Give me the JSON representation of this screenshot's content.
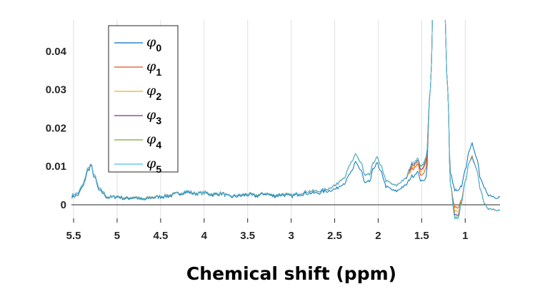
{
  "chart_data": {
    "type": "line",
    "title": "",
    "xlabel": "Chemical shift (ppm)",
    "ylabel": "",
    "xlim": [
      5.525,
      0.6
    ],
    "x_reversed": true,
    "ylim": [
      -0.0047,
      0.0482
    ],
    "grid": "vertical",
    "legend_position": "top-left",
    "x_ticks": [
      "5.5",
      "5",
      "4.5",
      "4",
      "3.5",
      "3",
      "2.5",
      "2",
      "1.5",
      "1"
    ],
    "x_tick_values": [
      5.5,
      5,
      4.5,
      4,
      3.5,
      3,
      2.5,
      2,
      1.5,
      1
    ],
    "y_ticks": [
      "0",
      "0.01",
      "0.02",
      "0.03",
      "0.04"
    ],
    "y_tick_values": [
      0,
      0.01,
      0.02,
      0.03,
      0.04
    ],
    "x": [
      5.52,
      5.45,
      5.4,
      5.33,
      5.3,
      5.27,
      5.2,
      5.1,
      5.0,
      4.9,
      4.8,
      4.7,
      4.6,
      4.5,
      4.4,
      4.3,
      4.2,
      4.1,
      4.0,
      3.9,
      3.8,
      3.7,
      3.6,
      3.5,
      3.4,
      3.3,
      3.2,
      3.1,
      3.0,
      2.9,
      2.8,
      2.7,
      2.6,
      2.5,
      2.4,
      2.3,
      2.26,
      2.2,
      2.15,
      2.1,
      2.05,
      2.02,
      1.97,
      1.9,
      1.8,
      1.7,
      1.6,
      1.55,
      1.5,
      1.45,
      1.4,
      1.36,
      1.25,
      1.2,
      1.17,
      1.12,
      1.08,
      1.04,
      1.0,
      0.95,
      0.92,
      0.88,
      0.82,
      0.78,
      0.72,
      0.65,
      0.6
    ],
    "series": [
      {
        "name": "φ",
        "sub": "0",
        "color": "#0072BD",
        "values": [
          0.002,
          0.0025,
          0.0045,
          0.009,
          0.0102,
          0.0075,
          0.0035,
          0.0018,
          0.002,
          0.0015,
          0.0018,
          0.0012,
          0.0018,
          0.002,
          0.0022,
          0.0028,
          0.0032,
          0.0028,
          0.003,
          0.0025,
          0.0028,
          0.002,
          0.0022,
          0.0025,
          0.0022,
          0.0028,
          0.0022,
          0.0025,
          0.0022,
          0.0027,
          0.003,
          0.003,
          0.0035,
          0.004,
          0.0055,
          0.0085,
          0.0112,
          0.009,
          0.0055,
          0.006,
          0.0095,
          0.011,
          0.0085,
          0.0045,
          0.0035,
          0.0048,
          0.0075,
          0.0085,
          0.006,
          0.007,
          0.03,
          0.06,
          0.06,
          0.03,
          0.008,
          0.004,
          0.0035,
          0.005,
          0.009,
          0.014,
          0.0158,
          0.013,
          0.007,
          0.004,
          0.0025,
          0.002,
          0.002
        ]
      },
      {
        "name": "φ",
        "sub": "1",
        "color": "#D95319",
        "values": [
          0.0025,
          0.003,
          0.005,
          0.0095,
          0.0105,
          0.008,
          0.004,
          0.002,
          0.0022,
          0.0018,
          0.002,
          0.0015,
          0.002,
          0.0022,
          0.0025,
          0.003,
          0.0035,
          0.003,
          0.0032,
          0.0028,
          0.003,
          0.0022,
          0.0025,
          0.0028,
          0.0025,
          0.003,
          0.0025,
          0.0028,
          0.0025,
          0.003,
          0.0035,
          0.0035,
          0.004,
          0.005,
          0.007,
          0.011,
          0.0132,
          0.011,
          0.0075,
          0.0078,
          0.011,
          0.0125,
          0.01,
          0.006,
          0.005,
          0.0065,
          0.0095,
          0.0105,
          0.0075,
          0.0095,
          0.03,
          0.06,
          0.06,
          0.03,
          0.005,
          -0.0005,
          -0.001,
          0.0015,
          0.006,
          0.011,
          0.0125,
          0.01,
          0.004,
          0,
          -0.001,
          -0.0012,
          -0.0015
        ]
      },
      {
        "name": "φ",
        "sub": "2",
        "color": "#EDB120",
        "values": [
          0.0025,
          0.003,
          0.005,
          0.0095,
          0.0105,
          0.008,
          0.004,
          0.002,
          0.0022,
          0.0018,
          0.002,
          0.0015,
          0.002,
          0.0022,
          0.0025,
          0.003,
          0.0035,
          0.003,
          0.0032,
          0.0028,
          0.003,
          0.0022,
          0.0025,
          0.0028,
          0.0025,
          0.003,
          0.0025,
          0.0028,
          0.0025,
          0.003,
          0.0035,
          0.0035,
          0.004,
          0.005,
          0.007,
          0.011,
          0.0132,
          0.011,
          0.0075,
          0.0078,
          0.011,
          0.0125,
          0.01,
          0.006,
          0.005,
          0.0065,
          0.01,
          0.011,
          0.0085,
          0.011,
          0.03,
          0.06,
          0.06,
          0.03,
          0.005,
          -0.0015,
          -0.002,
          0.001,
          0.006,
          0.011,
          0.012,
          0.01,
          0.004,
          0,
          -0.001,
          -0.0012,
          -0.0015
        ]
      },
      {
        "name": "φ",
        "sub": "3",
        "color": "#7E2F8E",
        "values": [
          0.0025,
          0.003,
          0.005,
          0.0095,
          0.0105,
          0.008,
          0.004,
          0.002,
          0.0022,
          0.0018,
          0.002,
          0.0015,
          0.002,
          0.0022,
          0.0025,
          0.003,
          0.0035,
          0.003,
          0.0032,
          0.0028,
          0.003,
          0.0022,
          0.0025,
          0.0028,
          0.0025,
          0.003,
          0.0025,
          0.0028,
          0.0025,
          0.003,
          0.0035,
          0.0035,
          0.004,
          0.005,
          0.007,
          0.011,
          0.0132,
          0.011,
          0.0075,
          0.0078,
          0.011,
          0.0125,
          0.01,
          0.006,
          0.005,
          0.0065,
          0.0105,
          0.0115,
          0.009,
          0.0115,
          0.03,
          0.06,
          0.06,
          0.03,
          0.005,
          -0.0025,
          -0.003,
          0.001,
          0.006,
          0.011,
          0.012,
          0.01,
          0.004,
          0,
          -0.001,
          -0.0012,
          -0.0015
        ]
      },
      {
        "name": "φ",
        "sub": "4",
        "color": "#77AC30",
        "values": [
          0.0025,
          0.003,
          0.005,
          0.0095,
          0.0105,
          0.008,
          0.004,
          0.002,
          0.0022,
          0.0018,
          0.002,
          0.0015,
          0.002,
          0.0022,
          0.0025,
          0.003,
          0.0035,
          0.003,
          0.0032,
          0.0028,
          0.003,
          0.0022,
          0.0025,
          0.0028,
          0.0025,
          0.003,
          0.0025,
          0.0028,
          0.0025,
          0.003,
          0.0035,
          0.0035,
          0.004,
          0.005,
          0.007,
          0.011,
          0.0132,
          0.011,
          0.0075,
          0.0078,
          0.011,
          0.0125,
          0.01,
          0.006,
          0.005,
          0.0065,
          0.011,
          0.012,
          0.0098,
          0.0122,
          0.03,
          0.06,
          0.06,
          0.03,
          0.005,
          -0.0032,
          -0.0035,
          0.001,
          0.006,
          0.011,
          0.012,
          0.01,
          0.004,
          0,
          -0.001,
          -0.0012,
          -0.0015
        ]
      },
      {
        "name": "φ",
        "sub": "5",
        "color": "#4DBEEE",
        "values": [
          0.0025,
          0.003,
          0.005,
          0.0095,
          0.0105,
          0.008,
          0.004,
          0.002,
          0.0022,
          0.0018,
          0.002,
          0.0015,
          0.002,
          0.0022,
          0.0025,
          0.003,
          0.0035,
          0.003,
          0.0032,
          0.0028,
          0.003,
          0.0022,
          0.0025,
          0.0028,
          0.0025,
          0.003,
          0.0025,
          0.0028,
          0.0025,
          0.003,
          0.0035,
          0.0035,
          0.004,
          0.005,
          0.007,
          0.011,
          0.0132,
          0.011,
          0.0075,
          0.0078,
          0.011,
          0.0125,
          0.01,
          0.006,
          0.005,
          0.0065,
          0.011,
          0.012,
          0.01,
          0.0125,
          0.03,
          0.06,
          0.06,
          0.03,
          0.005,
          -0.0035,
          -0.0038,
          0.0005,
          0.006,
          0.011,
          0.012,
          0.01,
          0.004,
          0,
          -0.001,
          -0.0012,
          -0.0015
        ]
      }
    ]
  }
}
